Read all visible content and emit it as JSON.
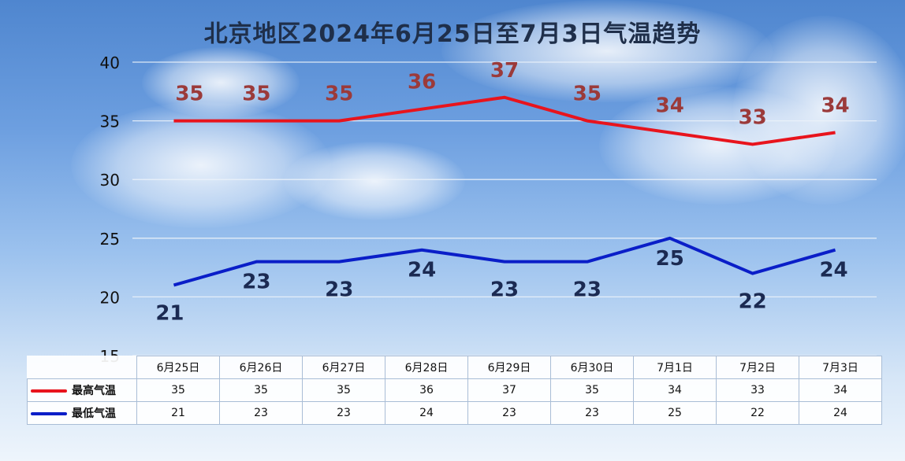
{
  "chart_data": {
    "type": "line",
    "title": "北京地区2024年6月25日至7月3日气温趋势",
    "categories": [
      "6月25日",
      "6月26日",
      "6月27日",
      "6月28日",
      "6月29日",
      "6月30日",
      "7月1日",
      "7月2日",
      "7月3日"
    ],
    "series": [
      {
        "name": "最高气温",
        "color": "#e8141d",
        "label_color": "#9b3a3a",
        "values": [
          35,
          35,
          35,
          36,
          37,
          35,
          34,
          33,
          34
        ]
      },
      {
        "name": "最低气温",
        "color": "#0a1ec8",
        "label_color": "#1b2a52",
        "values": [
          21,
          23,
          23,
          24,
          23,
          23,
          25,
          22,
          24
        ]
      }
    ],
    "yticks": [
      40,
      35,
      30,
      25,
      20,
      15
    ],
    "ylim": [
      15,
      40
    ],
    "grid": true,
    "legend": "bottom-left data table"
  }
}
